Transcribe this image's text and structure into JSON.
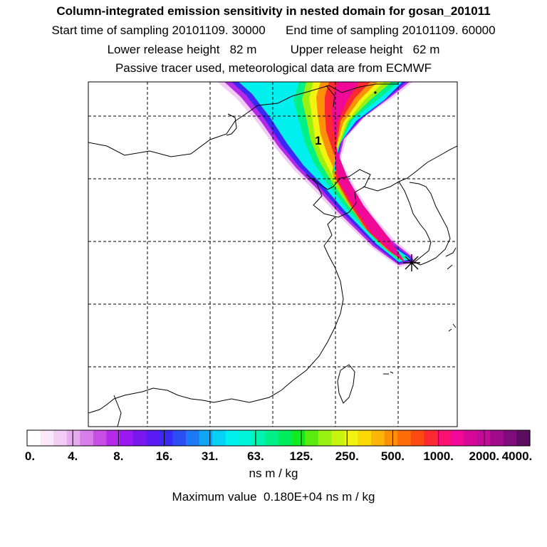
{
  "header": {
    "title": "Column-integrated emission sensitivity in nested domain for gosan_201011",
    "line1": "Start time of sampling 20101109. 30000      End time of sampling 20101109. 60000",
    "line2": "Lower release height   82 m          Upper release height   62 m",
    "line3": "Passive tracer used, meteorological data are from ECMWF"
  },
  "map": {
    "label_1": "1",
    "receptor": "receptor-star"
  },
  "colorbar": {
    "ticks": [
      "0.",
      "4.",
      "8.",
      "16.",
      "31.",
      "63.",
      "125.",
      "250.",
      "500.",
      "1000.",
      "2000.",
      "4000."
    ],
    "colors": [
      "#ffffff",
      "#fbe8fb",
      "#f3ccf5",
      "#e8aaf0",
      "#d97de8",
      "#c64ee6",
      "#b52ae8",
      "#9b18ee",
      "#7a16f0",
      "#5a1cf2",
      "#3a28f4",
      "#2a4ef4",
      "#1c78f4",
      "#10a4f4",
      "#06d0f4",
      "#00f0f0",
      "#00f4d8",
      "#00f4b0",
      "#00f088",
      "#00ec5a",
      "#10ec20",
      "#5aec10",
      "#9af010",
      "#c8f410",
      "#f0f410",
      "#fcd808",
      "#fcb408",
      "#fc9008",
      "#fc6c08",
      "#fc4a10",
      "#fc2a30",
      "#fc1070",
      "#f00896",
      "#d80896",
      "#c00c96",
      "#a00c8c",
      "#800c7c",
      "#5c0c5c"
    ],
    "units": "ns m / kg"
  },
  "footer": {
    "max_value": "Maximum value  0.180E+04 ns m / kg"
  }
}
